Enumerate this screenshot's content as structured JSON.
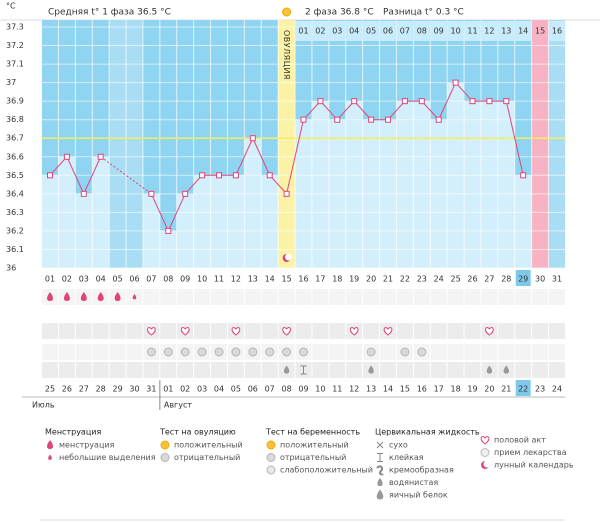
{
  "chart_data": {
    "type": "bbt",
    "y_unit": "°C",
    "phase1_summary": "Средняя t° 1 фаза 36.5 °C",
    "phase2_summary": "2 фаза 36.8 °C",
    "difference": "Разница t° 0.3 °C",
    "ovulation_label": "ОВУЛЯЦИЯ",
    "ylim": [
      36,
      37.3
    ],
    "yticks": [
      36,
      36.1,
      36.2,
      36.3,
      36.4,
      36.5,
      36.6,
      36.7,
      36.8,
      36.9,
      37,
      37.1,
      37.2,
      37.3
    ],
    "coverline": 36.7,
    "ovulation_index": 14,
    "period_index": 29,
    "today_index": 28,
    "line_color": "#e0457a",
    "categories": [
      "01",
      "02",
      "03",
      "04",
      "05",
      "06",
      "07",
      "08",
      "09",
      "10",
      "11",
      "12",
      "13",
      "14",
      "15",
      "16",
      "17",
      "18",
      "19",
      "20",
      "21",
      "22",
      "23",
      "24",
      "25",
      "26",
      "27",
      "28",
      "29",
      "30",
      "31"
    ],
    "values": [
      36.5,
      36.6,
      36.4,
      36.6,
      null,
      null,
      36.4,
      36.2,
      36.4,
      36.5,
      36.5,
      36.5,
      36.7,
      36.5,
      36.4,
      36.8,
      36.9,
      36.8,
      36.9,
      36.8,
      36.8,
      36.9,
      36.9,
      36.8,
      37,
      36.9,
      36.9,
      36.9,
      36.5,
      null,
      null
    ],
    "post_ovulation_days": [
      "01",
      "02",
      "03",
      "04",
      "05",
      "06",
      "07",
      "08",
      "09",
      "10",
      "11",
      "12",
      "13",
      "14",
      "15",
      "16"
    ],
    "dates": [
      "25",
      "26",
      "27",
      "28",
      "29",
      "30",
      "31",
      "01",
      "02",
      "03",
      "04",
      "05",
      "06",
      "07",
      "08",
      "09",
      "10",
      "11",
      "12",
      "13",
      "14",
      "15",
      "16",
      "17",
      "18",
      "19",
      "20",
      "21",
      "22",
      "23",
      "24"
    ],
    "weekend_indices": [
      3,
      4,
      10,
      11,
      17,
      18,
      24,
      25
    ],
    "months": [
      {
        "label": "Июль",
        "start": 0
      },
      {
        "label": "Август",
        "start": 7
      }
    ],
    "icon_rows": [
      {
        "group": 0,
        "marks": [
          0,
          0,
          0,
          0,
          0,
          1,
          null,
          null,
          null,
          null,
          null,
          null,
          null,
          null,
          null,
          null,
          null,
          null,
          null,
          null,
          null,
          null,
          null,
          null,
          null,
          null,
          null,
          null,
          null,
          null,
          null
        ]
      },
      {
        "group": 4,
        "marks": [
          null,
          null,
          null,
          null,
          null,
          null,
          0,
          null,
          0,
          null,
          null,
          0,
          null,
          null,
          0,
          null,
          null,
          null,
          0,
          null,
          0,
          null,
          null,
          null,
          null,
          null,
          0,
          null,
          null,
          null,
          null
        ]
      },
      {
        "group": 1,
        "marks": [
          null,
          null,
          null,
          null,
          null,
          null,
          1,
          1,
          1,
          1,
          1,
          1,
          1,
          1,
          1,
          1,
          null,
          null,
          null,
          1,
          null,
          1,
          1,
          null,
          null,
          null,
          null,
          null,
          null,
          null,
          null
        ]
      },
      {
        "group": 3,
        "marks": [
          null,
          null,
          null,
          null,
          null,
          null,
          null,
          null,
          null,
          null,
          null,
          null,
          null,
          null,
          3,
          1,
          null,
          null,
          null,
          3,
          null,
          null,
          null,
          null,
          null,
          null,
          3,
          3,
          null,
          null,
          null
        ]
      }
    ],
    "legend": [
      {
        "title": "Менструация",
        "items": [
          "менструация",
          "небольшие выделения"
        ]
      },
      {
        "title": "Тест на овуляцию",
        "items": [
          "положительный",
          "отрицательный"
        ]
      },
      {
        "title": "Тест на беременность",
        "items": [
          "положительный",
          "отрицательный",
          "слабоположительный"
        ]
      },
      {
        "title": "Цервикальная жидкость",
        "items": [
          "сухо",
          "клейкая",
          "кремообразная",
          "водянистая",
          "яичный белок"
        ]
      },
      {
        "items": [
          "половой акт",
          "прием лекарства",
          "лунный календарь"
        ]
      }
    ]
  }
}
